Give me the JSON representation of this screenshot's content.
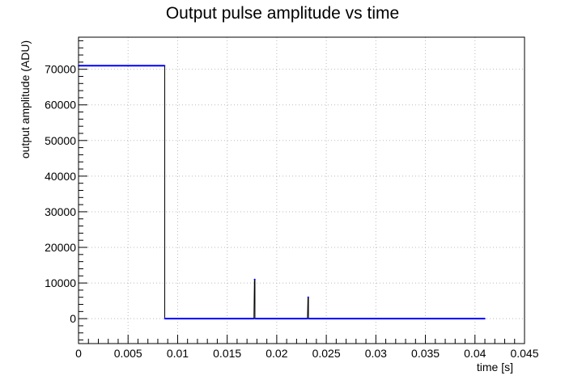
{
  "chart_data": {
    "type": "line",
    "title": "Output pulse amplitude vs time",
    "xlabel": "time [s]",
    "ylabel": "output amplitude (ADU)",
    "xlim": [
      0,
      0.045
    ],
    "ylim": [
      -7000,
      79000
    ],
    "x_ticks": [
      0,
      0.005,
      0.01,
      0.015,
      0.02,
      0.025,
      0.03,
      0.035,
      0.04,
      0.045
    ],
    "x_tick_labels": [
      "0",
      "0.005",
      "0.01",
      "0.015",
      "0.02",
      "0.025",
      "0.03",
      "0.035",
      "0.04",
      "0.045"
    ],
    "y_ticks": [
      0,
      10000,
      20000,
      30000,
      40000,
      50000,
      60000,
      70000
    ],
    "y_tick_labels": [
      "0",
      "10000",
      "20000",
      "30000",
      "40000",
      "50000",
      "60000",
      "70000"
    ],
    "grid": true,
    "colors": {
      "series": "#0000ff",
      "transition": "#000000",
      "axis": "#000000",
      "grid": "#bbbbbb"
    },
    "series": [
      {
        "x": [
          0,
          0.0087,
          0.0087,
          0.0177,
          0.01775,
          0.0178,
          0.0178,
          0.0231,
          0.02315,
          0.0232,
          0.0232,
          0.041
        ],
        "y": [
          71000,
          71000,
          0,
          0,
          11000,
          11000,
          0,
          0,
          6000,
          6000,
          0,
          0
        ]
      }
    ]
  }
}
